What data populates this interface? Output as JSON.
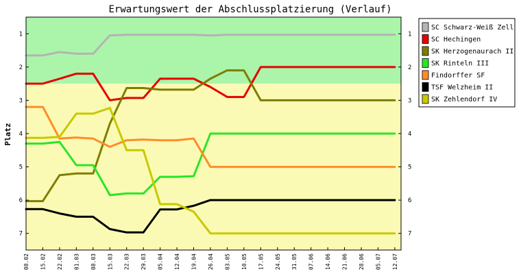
{
  "chart_data": {
    "type": "line",
    "title": "Erwartungswert der Abschlussplatzierung (Verlauf)",
    "ylabel": "Platz",
    "xlabel": "",
    "ylim": [
      7.5,
      0.5
    ],
    "y_inverted": true,
    "yticks": [
      1,
      2,
      3,
      4,
      5,
      6,
      7
    ],
    "grid": false,
    "legend_position": "right",
    "zones": [
      {
        "from": 0.5,
        "to": 2.5,
        "color": "#aaf5aa"
      },
      {
        "from": 2.5,
        "to": 7.5,
        "color": "#fafab4"
      }
    ],
    "x": [
      "08.02",
      "15.02",
      "22.02",
      "01.03",
      "08.03",
      "15.03",
      "22.03",
      "29.03",
      "05.04",
      "12.04",
      "19.04",
      "26.04",
      "03.05",
      "10.05",
      "17.05",
      "24.05",
      "31.05",
      "07.06",
      "14.06",
      "21.06",
      "28.06",
      "05.07",
      "12.07"
    ],
    "series": [
      {
        "name": "SC Schwarz-Weiß Zell",
        "color": "#b4b4b4",
        "values": [
          1.65,
          1.65,
          1.55,
          1.6,
          1.6,
          1.05,
          1.03,
          1.03,
          1.03,
          1.03,
          1.03,
          1.05,
          1.03,
          1.03,
          1.03,
          1.03,
          1.03,
          1.03,
          1.03,
          1.03,
          1.03,
          1.03,
          1.03
        ]
      },
      {
        "name": "SC Hechingen",
        "color": "#e60000",
        "values": [
          2.5,
          2.5,
          2.35,
          2.2,
          2.2,
          3.0,
          2.93,
          2.93,
          2.35,
          2.35,
          2.35,
          2.6,
          2.9,
          2.9,
          2.0,
          2.0,
          2.0,
          2.0,
          2.0,
          2.0,
          2.0,
          2.0,
          2.0
        ]
      },
      {
        "name": "SK Herzogenaurach II",
        "color": "#7d7d00",
        "values": [
          6.03,
          6.03,
          5.25,
          5.2,
          5.2,
          3.7,
          2.63,
          2.63,
          2.68,
          2.68,
          2.68,
          2.35,
          2.1,
          2.1,
          3.0,
          3.0,
          3.0,
          3.0,
          3.0,
          3.0,
          3.0,
          3.0,
          3.0
        ]
      },
      {
        "name": "SK Rinteln III",
        "color": "#28e628",
        "values": [
          4.3,
          4.3,
          4.25,
          4.95,
          4.95,
          5.85,
          5.8,
          5.8,
          5.3,
          5.3,
          5.28,
          4.0,
          4.0,
          4.0,
          4.0,
          4.0,
          4.0,
          4.0,
          4.0,
          4.0,
          4.0,
          4.0,
          4.0
        ]
      },
      {
        "name": "Findorffer SF",
        "color": "#ff8c28",
        "values": [
          3.2,
          3.2,
          4.15,
          4.12,
          4.15,
          4.4,
          4.2,
          4.18,
          4.2,
          4.2,
          4.15,
          5.0,
          5.0,
          5.0,
          5.0,
          5.0,
          5.0,
          5.0,
          5.0,
          5.0,
          5.0,
          5.0,
          5.0
        ]
      },
      {
        "name": "TSF Welzheim II",
        "color": "#000000",
        "values": [
          6.27,
          6.27,
          6.4,
          6.5,
          6.5,
          6.87,
          6.97,
          6.97,
          6.28,
          6.28,
          6.17,
          6.0,
          6.0,
          6.0,
          6.0,
          6.0,
          6.0,
          6.0,
          6.0,
          6.0,
          6.0,
          6.0,
          6.0
        ]
      },
      {
        "name": "SK Zehlendorf IV",
        "color": "#c8c800",
        "values": [
          4.13,
          4.13,
          4.1,
          3.4,
          3.4,
          3.23,
          4.5,
          4.5,
          6.12,
          6.12,
          6.35,
          7.0,
          7.0,
          7.0,
          7.0,
          7.0,
          7.0,
          7.0,
          7.0,
          7.0,
          7.0,
          7.0,
          7.0
        ]
      }
    ]
  }
}
